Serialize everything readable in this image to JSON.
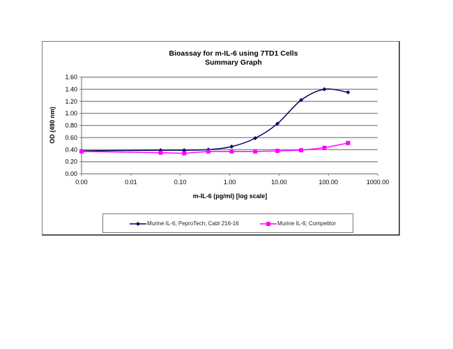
{
  "chart_data": {
    "type": "line",
    "title": "Bioassay for m-IL-6 using 7TD1 Cells",
    "subtitle": "Summary Graph",
    "xlabel": "m-IL-6 (pg/ml) [log scale]",
    "ylabel": "OD (490 nm)",
    "xscale": "log",
    "xlim": [
      0.001,
      1000
    ],
    "ylim": [
      0,
      1.6
    ],
    "x_tick_labels": [
      "0.00",
      "0.01",
      "0.10",
      "1.00",
      "10.00",
      "100.00",
      "1000.00"
    ],
    "y_tick_labels": [
      "0.00",
      "0.20",
      "0.40",
      "0.60",
      "0.80",
      "1.00",
      "1.20",
      "1.40",
      "1.60"
    ],
    "grid": "horizontal",
    "legend_position": "bottom",
    "x": [
      0.001,
      0.04,
      0.12,
      0.37,
      1.1,
      3.3,
      9.3,
      28,
      83,
      250
    ],
    "series": [
      {
        "name": "Murine IL-6; PeproTech; Cat# 216-16",
        "color": "#000066",
        "marker": "diamond",
        "smooth": true,
        "values": [
          0.38,
          0.39,
          0.39,
          0.4,
          0.45,
          0.59,
          0.83,
          1.22,
          1.4,
          1.35
        ]
      },
      {
        "name": "Murine IL-6; Competitor",
        "color": "#ff00ff",
        "marker": "square",
        "smooth": false,
        "values": [
          0.37,
          0.35,
          0.34,
          0.37,
          0.37,
          0.37,
          0.38,
          0.39,
          0.43,
          0.51
        ]
      }
    ]
  },
  "title_line1": "Bioassay for m-IL-6 using 7TD1 Cells",
  "title_line2": "Summary Graph",
  "legend": {
    "item1": "Murine IL-6; PeproTech; Cat# 216-16",
    "item2": "Murine IL-6; Competitor"
  }
}
